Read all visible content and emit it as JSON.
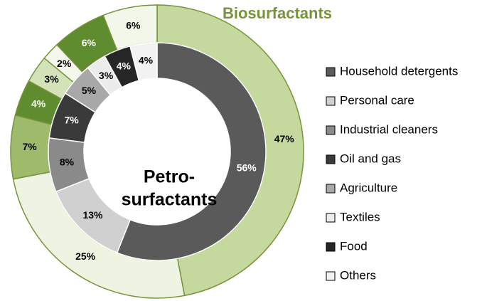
{
  "chart_data": {
    "type": "donut",
    "categories": [
      "Household detergents",
      "Personal care",
      "Industrial cleaners",
      "Oil and gas",
      "Agriculture",
      "Textiles",
      "Food",
      "Others"
    ],
    "series": [
      {
        "name": "Biosurfactants",
        "ring": "outer",
        "values": [
          47,
          25,
          7,
          4,
          3,
          2,
          6,
          6
        ],
        "value_labels": [
          "47%",
          "25%",
          "7%",
          "4%",
          "3%",
          "2%",
          "6%",
          "6%"
        ],
        "colors": [
          "#c5d99e",
          "#eef4e1",
          "#9dbb6a",
          "#5f8c2f",
          "#d3e2b8",
          "#f4f8ec",
          "#5f8c2f",
          "#f3f7ea"
        ]
      },
      {
        "name_lines": [
          "Petro-",
          "surfactants"
        ],
        "ring": "inner",
        "values": [
          56,
          13,
          8,
          7,
          5,
          3,
          4,
          4
        ],
        "value_labels": [
          "56%",
          "13%",
          "8%",
          "7%",
          "5%",
          "3%",
          "4%",
          "4%"
        ],
        "colors": [
          "#5a5a5a",
          "#d0d0d0",
          "#8a8a8a",
          "#3a3a3a",
          "#a8a8a8",
          "#ececec",
          "#262626",
          "#f2f2f2"
        ]
      }
    ],
    "title_color": "#77933c",
    "legend": "right"
  }
}
